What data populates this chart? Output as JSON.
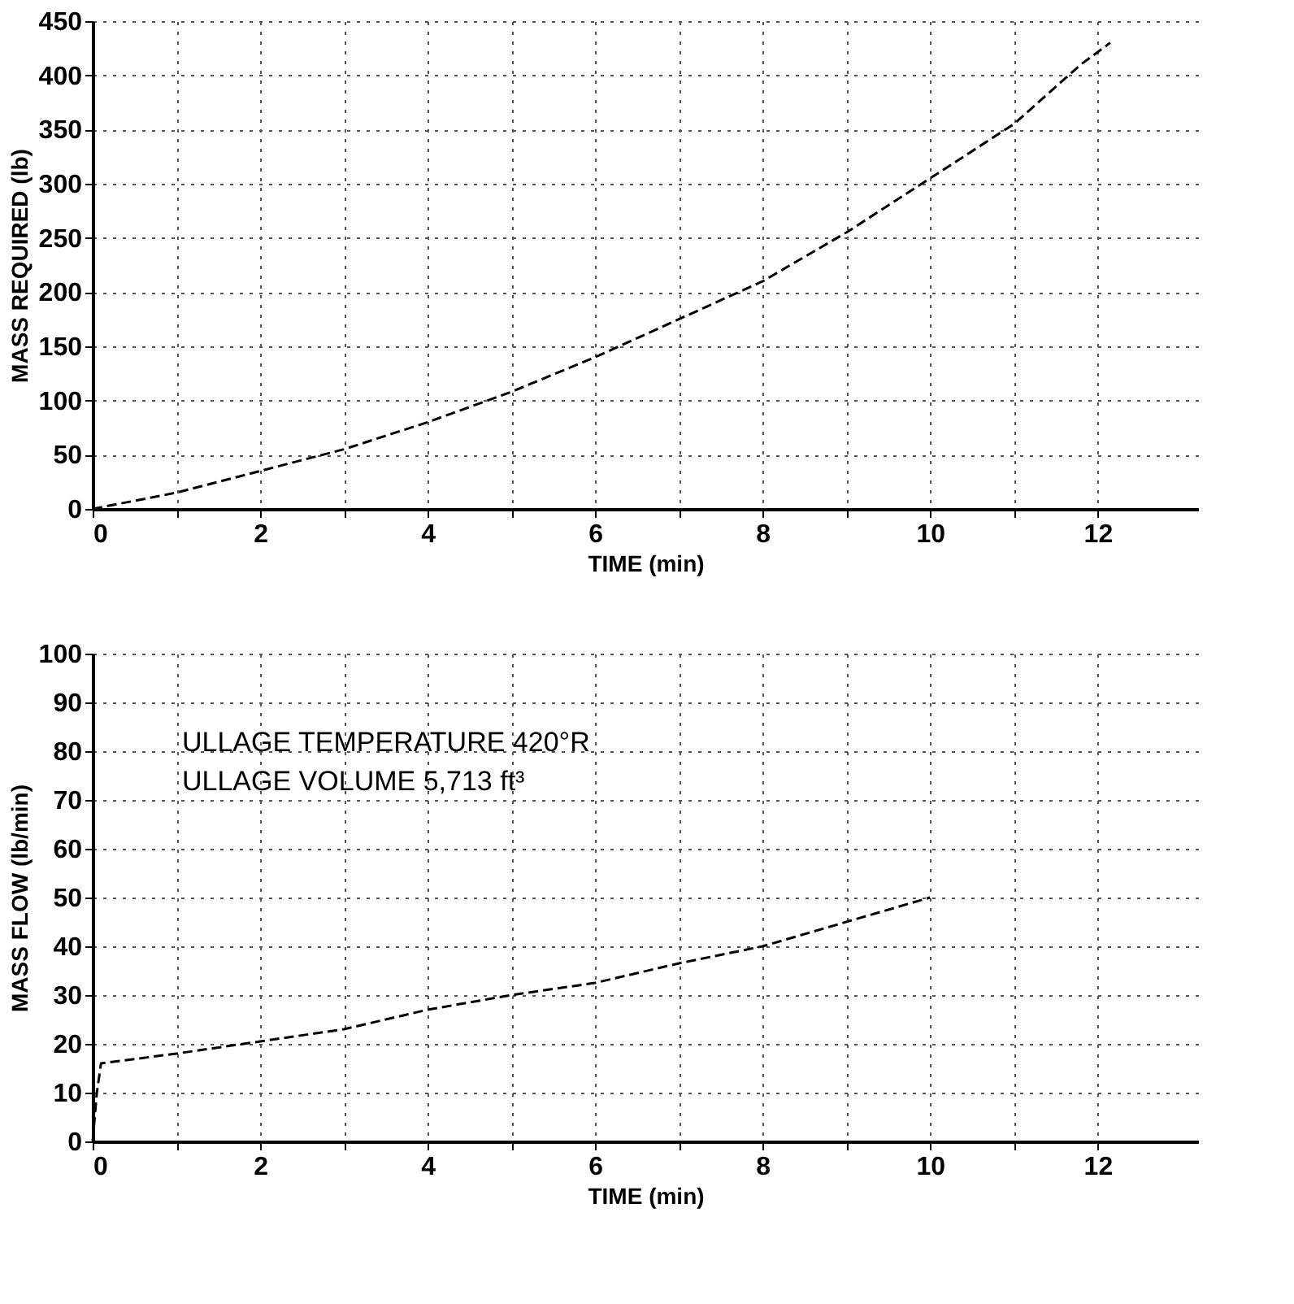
{
  "chart_data": [
    {
      "type": "line",
      "xlabel": "TIME (min)",
      "ylabel": "MASS REQUIRED (lb)",
      "xlim": [
        0,
        13.2
      ],
      "ylim": [
        0,
        450
      ],
      "xticks": [
        0,
        {
          "value": 1,
          "label": null
        },
        2,
        {
          "value": 3,
          "label": null
        },
        4,
        {
          "value": 5,
          "label": null
        },
        6,
        {
          "value": 7,
          "label": null
        },
        8,
        {
          "value": 9,
          "label": null
        },
        10,
        {
          "value": 11,
          "label": null
        },
        12
      ],
      "yticks": [
        0,
        50,
        100,
        150,
        200,
        250,
        300,
        350,
        400,
        450
      ],
      "grid": true,
      "line_style": "dashed",
      "marker": "none",
      "series": [
        {
          "color": "#000000",
          "x": [
            0,
            1,
            2,
            3,
            4,
            5,
            6,
            7,
            8,
            9,
            10,
            11,
            11.8,
            12.15
          ],
          "values": [
            0,
            15,
            35,
            55,
            80,
            108,
            140,
            175,
            210,
            255,
            305,
            355,
            410,
            430
          ]
        }
      ]
    },
    {
      "type": "line",
      "xlabel": "TIME (min)",
      "ylabel": "MASS FLOW (lb/min)",
      "xlim": [
        0,
        13.2
      ],
      "ylim": [
        0,
        100
      ],
      "xticks": [
        0,
        {
          "value": 1,
          "label": null
        },
        2,
        {
          "value": 3,
          "label": null
        },
        4,
        {
          "value": 5,
          "label": null
        },
        6,
        {
          "value": 7,
          "label": null
        },
        8,
        {
          "value": 9,
          "label": null
        },
        10,
        {
          "value": 11,
          "label": null
        },
        12
      ],
      "yticks": [
        0,
        10,
        20,
        30,
        40,
        50,
        60,
        70,
        80,
        90,
        100
      ],
      "grid": true,
      "line_style": "dashed",
      "marker": "none",
      "annotations": [
        "ULLAGE TEMPERATURE 420°R",
        "ULLAGE VOLUME 5,713 ft³"
      ],
      "series": [
        {
          "color": "#000000",
          "x": [
            0,
            0.05,
            0.1,
            1,
            2,
            3,
            4,
            5,
            6,
            7,
            8,
            10
          ],
          "values": [
            0,
            10,
            16,
            18,
            20.5,
            23,
            27,
            30,
            32.5,
            36.5,
            40,
            50
          ]
        }
      ]
    }
  ]
}
